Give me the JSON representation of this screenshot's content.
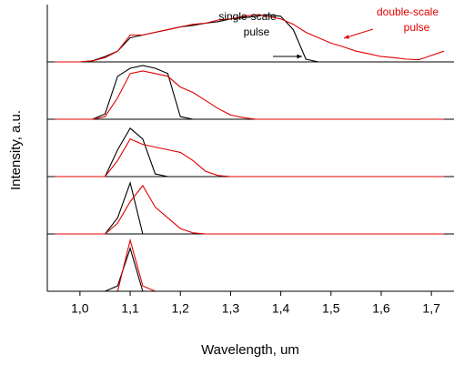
{
  "chart_data": {
    "type": "line",
    "x_label": "Wavelength, um",
    "y_label": "Intensity, a.u.",
    "xlim": [
      0.935,
      1.745
    ],
    "xticks": [
      {
        "value": 1.0,
        "label": "1,0"
      },
      {
        "value": 1.1,
        "label": "1,1"
      },
      {
        "value": 1.2,
        "label": "1,2"
      },
      {
        "value": 1.3,
        "label": "1,3"
      },
      {
        "value": 1.4,
        "label": "1,4"
      },
      {
        "value": 1.5,
        "label": "1,5"
      },
      {
        "value": 1.6,
        "label": "1,6"
      },
      {
        "value": 1.7,
        "label": "1,7"
      }
    ],
    "ylim": [
      0,
      1
    ],
    "x": [
      0.95,
      0.975,
      1.0,
      1.025,
      1.05,
      1.075,
      1.1,
      1.125,
      1.15,
      1.175,
      1.2,
      1.225,
      1.25,
      1.275,
      1.3,
      1.325,
      1.35,
      1.375,
      1.4,
      1.425,
      1.45,
      1.475,
      1.5,
      1.525,
      1.55,
      1.575,
      1.6,
      1.625,
      1.65,
      1.675,
      1.7,
      1.725
    ],
    "panels": [
      {
        "series": [
          {
            "color": "#000000",
            "values": [
              0,
              0,
              0,
              0.02,
              0.1,
              0.2,
              0.45,
              0.5,
              0.55,
              0.6,
              0.65,
              0.68,
              0.72,
              0.75,
              0.8,
              0.82,
              0.85,
              0.88,
              0.85,
              0.6,
              0.05,
              0,
              0,
              0,
              0,
              0,
              0,
              0,
              0,
              0,
              0,
              0
            ]
          },
          {
            "color": "#e00000",
            "values": [
              0,
              0,
              0,
              0.02,
              0.08,
              0.2,
              0.5,
              0.5,
              0.55,
              0.6,
              0.65,
              0.7,
              0.72,
              0.78,
              0.8,
              0.85,
              0.88,
              0.85,
              0.8,
              0.7,
              0.55,
              0.45,
              0.35,
              0.28,
              0.2,
              0.15,
              0.1,
              0.08,
              0.05,
              0.04,
              0.12,
              0.2
            ]
          }
        ]
      },
      {
        "series": [
          {
            "color": "#000000",
            "values": [
              0,
              0,
              0,
              0,
              0.1,
              0.8,
              0.95,
              1.0,
              0.95,
              0.85,
              0.05,
              0,
              0,
              0,
              0,
              0,
              0,
              0,
              0,
              0,
              0,
              0,
              0,
              0,
              0,
              0,
              0,
              0,
              0,
              0,
              0,
              0
            ]
          },
          {
            "color": "#e00000",
            "values": [
              0,
              0,
              0,
              0,
              0.05,
              0.4,
              0.85,
              0.9,
              0.85,
              0.8,
              0.6,
              0.5,
              0.35,
              0.2,
              0.08,
              0.03,
              0,
              0,
              0,
              0,
              0,
              0,
              0,
              0,
              0,
              0,
              0,
              0,
              0,
              0,
              0,
              0
            ]
          }
        ]
      },
      {
        "series": [
          {
            "color": "#000000",
            "values": [
              0,
              0,
              0,
              0,
              0,
              0.5,
              0.9,
              0.7,
              0.05,
              0,
              0,
              0,
              0,
              0,
              0,
              0,
              0,
              0,
              0,
              0,
              0,
              0,
              0,
              0,
              0,
              0,
              0,
              0,
              0,
              0,
              0,
              0
            ]
          },
          {
            "color": "#e00000",
            "values": [
              0,
              0,
              0,
              0,
              0,
              0.3,
              0.7,
              0.6,
              0.55,
              0.5,
              0.45,
              0.3,
              0.1,
              0.02,
              0,
              0,
              0,
              0,
              0,
              0,
              0,
              0,
              0,
              0,
              0,
              0,
              0,
              0,
              0,
              0,
              0,
              0
            ]
          }
        ]
      },
      {
        "series": [
          {
            "color": "#000000",
            "values": [
              0,
              0,
              0,
              0,
              0,
              0.3,
              0.95,
              0,
              0,
              0,
              0,
              0,
              0,
              0,
              0,
              0,
              0,
              0,
              0,
              0,
              0,
              0,
              0,
              0,
              0,
              0,
              0,
              0,
              0,
              0,
              0,
              0
            ]
          },
          {
            "color": "#e00000",
            "values": [
              0,
              0,
              0,
              0,
              0,
              0.2,
              0.6,
              0.9,
              0.5,
              0.3,
              0.1,
              0.02,
              0,
              0,
              0,
              0,
              0,
              0,
              0,
              0,
              0,
              0,
              0,
              0,
              0,
              0,
              0,
              0,
              0,
              0,
              0,
              0
            ]
          }
        ]
      },
      {
        "series": [
          {
            "color": "#000000",
            "values": [
              0,
              0,
              0,
              0,
              0,
              0.1,
              0.8,
              0,
              0,
              0,
              0,
              0,
              0,
              0,
              0,
              0,
              0,
              0,
              0,
              0,
              0,
              0,
              0,
              0,
              0,
              0,
              0,
              0,
              0,
              0,
              0,
              0
            ]
          },
          {
            "color": "#e00000",
            "values": [
              0,
              0,
              0,
              0,
              0,
              0,
              0.95,
              0.1,
              0,
              0,
              0,
              0,
              0,
              0,
              0,
              0,
              0,
              0,
              0,
              0,
              0,
              0,
              0,
              0,
              0,
              0,
              0,
              0,
              0,
              0,
              0,
              0
            ]
          }
        ]
      }
    ],
    "annotations": [
      {
        "lines": [
          "single-scale",
          "pulse"
        ],
        "color": "#000000"
      },
      {
        "lines": [
          "double-scale",
          "pulse"
        ],
        "color": "#e00000"
      }
    ]
  }
}
